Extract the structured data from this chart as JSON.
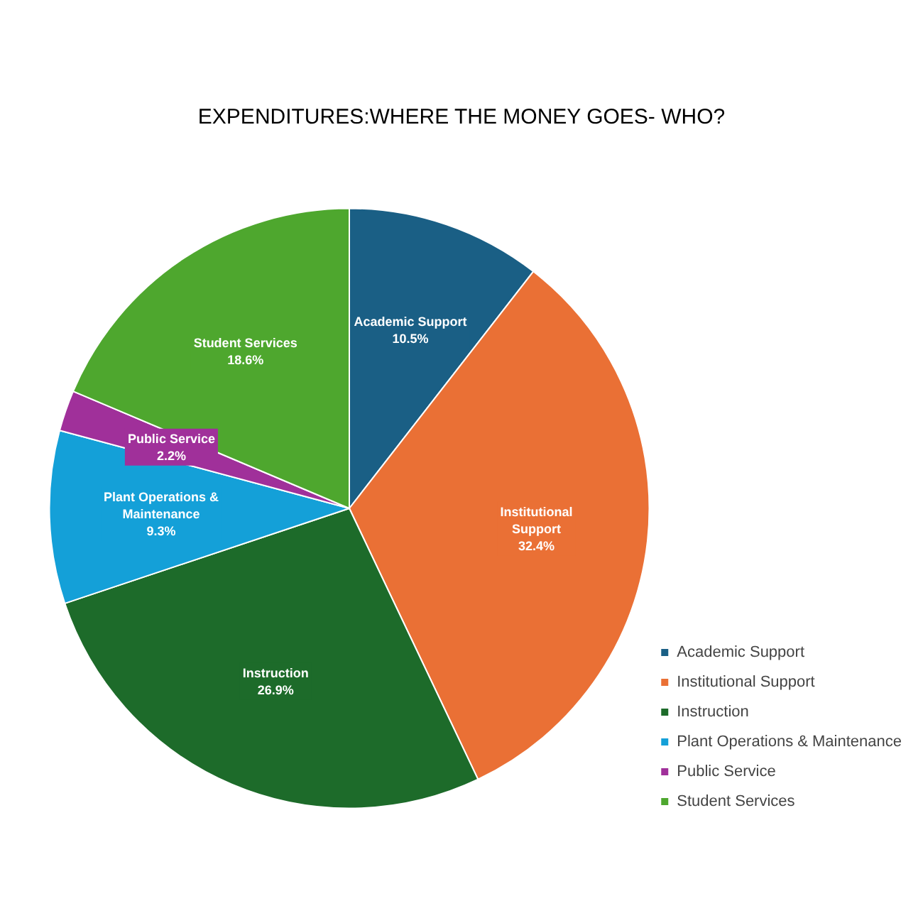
{
  "chart_data": {
    "type": "pie",
    "title": "EXPENDITURES:WHERE THE MONEY GOES- WHO?",
    "categories": [
      "Academic Support",
      "Institutional Support",
      "Instruction",
      "Plant Operations & Maintenance",
      "Public Service",
      "Student Services"
    ],
    "values": [
      10.5,
      32.4,
      26.9,
      9.3,
      2.2,
      18.6
    ],
    "value_labels": [
      "10.5%",
      "32.4%",
      "26.9%",
      "9.3%",
      "2.2%",
      "18.6%"
    ],
    "colors": [
      "#1a5f85",
      "#ea7035",
      "#1d6b2a",
      "#14a0d8",
      "#a0309a",
      "#4ea72e"
    ],
    "legend": "bottom right"
  }
}
